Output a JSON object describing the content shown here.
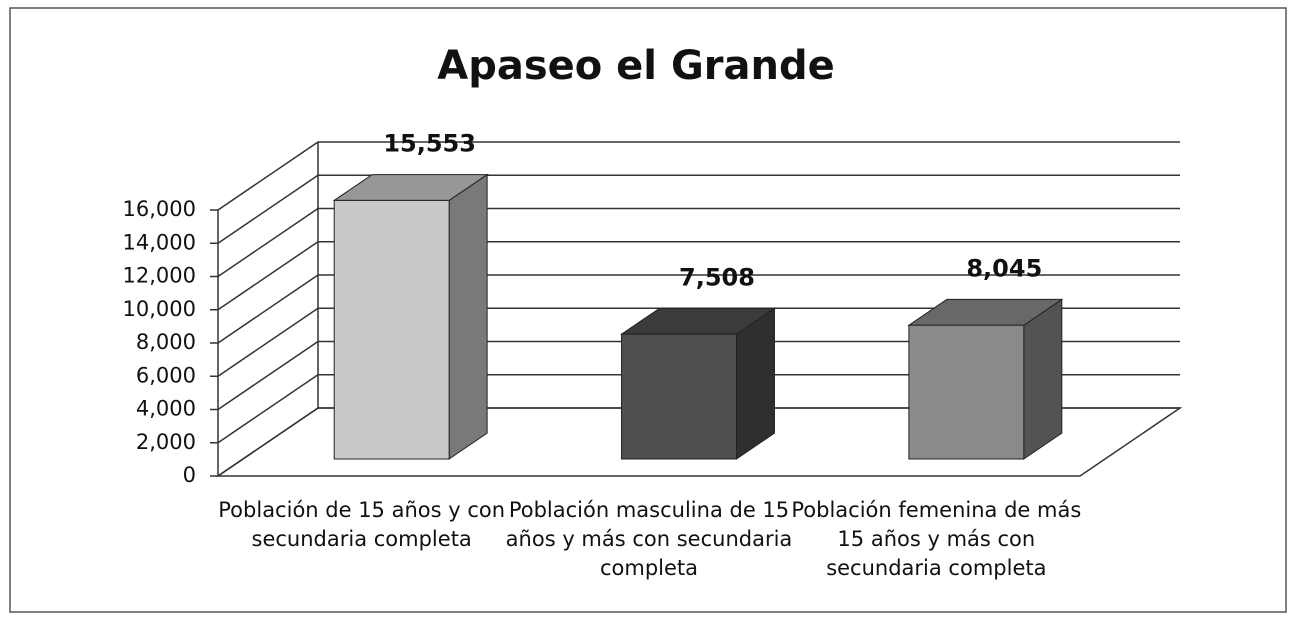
{
  "chart_data": {
    "type": "bar3d",
    "title": "Apaseo el Grande",
    "categories": [
      "Población de 15 años y con secundaria completa",
      "Población masculina de 15 años y más con secundaria completa",
      "Población femenina de más 15 años y más con secundaria completa"
    ],
    "values": [
      15553,
      7508,
      8045
    ],
    "value_labels": [
      "15,553",
      "7,508",
      "8,045"
    ],
    "colors": [
      "#c9c9c9",
      "#4f4f4f",
      "#8a8a8a"
    ],
    "ylim": [
      0,
      16000
    ],
    "yticks": [
      0,
      {
        "value": 2000,
        "label": "2,000"
      },
      {
        "value": 4000,
        "label": "4,000"
      },
      {
        "value": 6000,
        "label": "6,000"
      },
      {
        "value": 8000,
        "label": "8,000"
      },
      {
        "value": 10000,
        "label": "10,000"
      },
      {
        "value": 12000,
        "label": "12,000"
      },
      {
        "value": 14000,
        "label": "14,000"
      },
      {
        "value": 16000,
        "label": "16,000"
      }
    ],
    "grid": true
  }
}
